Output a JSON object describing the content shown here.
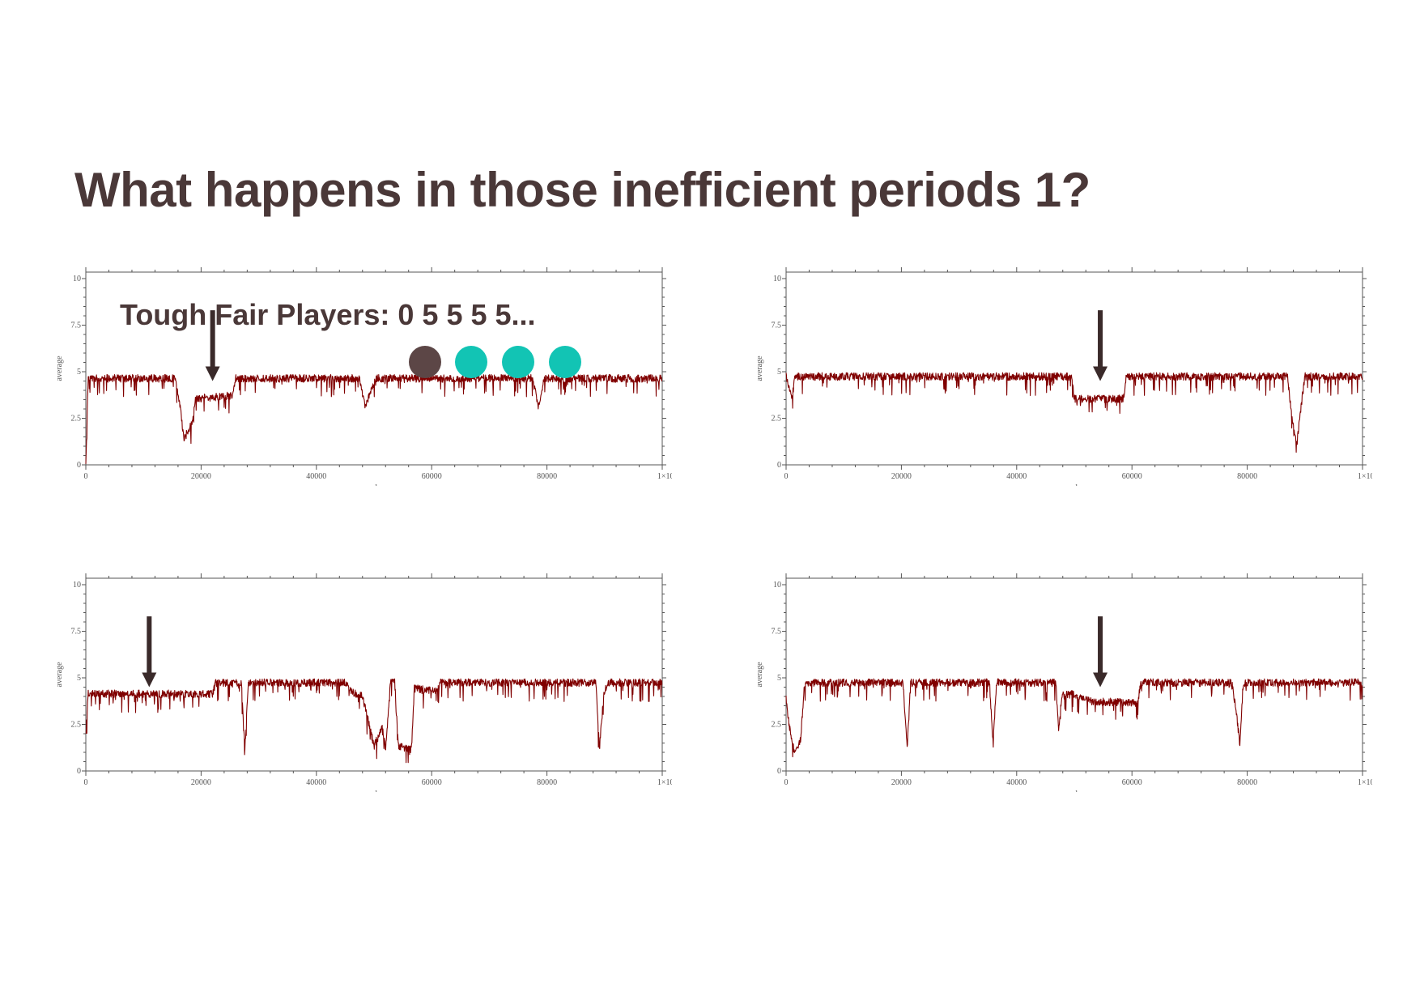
{
  "title": "What happens in those inefficient periods 1?",
  "annotation": {
    "text": "Tough Fair Players: 0 5 5 5 5...",
    "dots": [
      {
        "name": "player-dot-0",
        "color": "#5c4646"
      },
      {
        "name": "player-dot-1",
        "color": "#12c4b4"
      },
      {
        "name": "player-dot-2",
        "color": "#12c4b4"
      },
      {
        "name": "player-dot-3",
        "color": "#12c4b4"
      }
    ]
  },
  "colors": {
    "line": "#800000",
    "arrow": "#3a2a2a",
    "axis": "#555555",
    "text": "#4a3838"
  },
  "chart_data": [
    {
      "type": "line",
      "xlabel": "cycles",
      "ylabel": "average",
      "xlim": [
        0,
        100000
      ],
      "ylim": [
        0,
        10
      ],
      "xticks": [
        "0",
        "20000",
        "40000",
        "60000",
        "80000",
        "1×10⁵"
      ],
      "yticks": [
        "0",
        "2.5",
        "5",
        "7.5",
        "10"
      ],
      "series": [
        {
          "values": [
            [
              0,
              0
            ],
            [
              400,
              4.8
            ],
            [
              15500,
              4.8
            ],
            [
              16500,
              3
            ],
            [
              17000,
              1.5
            ],
            [
              18500,
              2.5
            ],
            [
              19000,
              3.7
            ],
            [
              25500,
              3.9
            ],
            [
              26000,
              4.8
            ],
            [
              47500,
              4.8
            ],
            [
              48500,
              3.2
            ],
            [
              49500,
              4.2
            ],
            [
              50500,
              4.8
            ],
            [
              77500,
              4.8
            ],
            [
              78500,
              3.3
            ],
            [
              79500,
              4.8
            ],
            [
              100000,
              4.8
            ]
          ]
        }
      ],
      "arrow_x": 22000
    },
    {
      "type": "line",
      "xlabel": "cycles",
      "ylabel": "average",
      "xlim": [
        0,
        100000
      ],
      "ylim": [
        0,
        10
      ],
      "xticks": [
        "0",
        "20000",
        "40000",
        "60000",
        "80000",
        "1×10⁵"
      ],
      "yticks": [
        "0",
        "2.5",
        "5",
        "7.5",
        "10"
      ],
      "series": [
        {
          "values": [
            [
              0,
              4.9
            ],
            [
              1000,
              3.6
            ],
            [
              1500,
              4.9
            ],
            [
              49500,
              4.9
            ],
            [
              50000,
              3.7
            ],
            [
              58500,
              3.7
            ],
            [
              59000,
              4.9
            ],
            [
              87000,
              4.9
            ],
            [
              87800,
              2.5
            ],
            [
              88600,
              1.2
            ],
            [
              89300,
              3.2
            ],
            [
              90000,
              4.9
            ],
            [
              100000,
              4.9
            ]
          ]
        }
      ],
      "arrow_x": 54500
    },
    {
      "type": "line",
      "xlabel": "cycles",
      "ylabel": "average",
      "xlim": [
        0,
        100000
      ],
      "ylim": [
        0,
        10
      ],
      "xticks": [
        "0",
        "20000",
        "40000",
        "60000",
        "80000",
        "1×10⁵"
      ],
      "yticks": [
        "0",
        "2.5",
        "5",
        "7.5",
        "10"
      ],
      "series": [
        {
          "values": [
            [
              0,
              2
            ],
            [
              400,
              4.3
            ],
            [
              22000,
              4.3
            ],
            [
              22500,
              4.9
            ],
            [
              27000,
              4.9
            ],
            [
              27600,
              1.3
            ],
            [
              28200,
              4.9
            ],
            [
              45000,
              4.9
            ],
            [
              46000,
              4.4
            ],
            [
              48000,
              4.2
            ],
            [
              50000,
              1.5
            ],
            [
              51500,
              2.5
            ],
            [
              52000,
              1.2
            ],
            [
              52800,
              4.9
            ],
            [
              53600,
              4.9
            ],
            [
              54200,
              1.5
            ],
            [
              56500,
              1.3
            ],
            [
              57000,
              4.6
            ],
            [
              61000,
              4.4
            ],
            [
              61500,
              4.9
            ],
            [
              88500,
              4.9
            ],
            [
              89100,
              1.3
            ],
            [
              89800,
              4.2
            ],
            [
              90500,
              4.9
            ],
            [
              100000,
              4.9
            ]
          ]
        }
      ],
      "arrow_x": 11000
    },
    {
      "type": "line",
      "xlabel": "cycles",
      "ylabel": "average",
      "xlim": [
        0,
        100000
      ],
      "ylim": [
        0,
        10
      ],
      "xticks": [
        "0",
        "20000",
        "40000",
        "60000",
        "80000",
        "1×10⁵"
      ],
      "yticks": [
        "0",
        "2.5",
        "5",
        "7.5",
        "10"
      ],
      "series": [
        {
          "values": [
            [
              0,
              4
            ],
            [
              600,
              2.5
            ],
            [
              1500,
              1.1
            ],
            [
              2500,
              1.8
            ],
            [
              3200,
              4.9
            ],
            [
              20300,
              4.9
            ],
            [
              21000,
              1.3
            ],
            [
              21600,
              4.9
            ],
            [
              35300,
              4.9
            ],
            [
              35900,
              1.6
            ],
            [
              36500,
              4.9
            ],
            [
              46800,
              4.9
            ],
            [
              47300,
              2.3
            ],
            [
              47800,
              4.2
            ],
            [
              50000,
              4.3
            ],
            [
              53000,
              3.9
            ],
            [
              61000,
              3.8
            ],
            [
              61500,
              4.9
            ],
            [
              77300,
              4.9
            ],
            [
              78000,
              3.6
            ],
            [
              78700,
              1.6
            ],
            [
              79300,
              4.9
            ],
            [
              100000,
              4.9
            ]
          ]
        }
      ],
      "arrow_x": 54500
    }
  ]
}
